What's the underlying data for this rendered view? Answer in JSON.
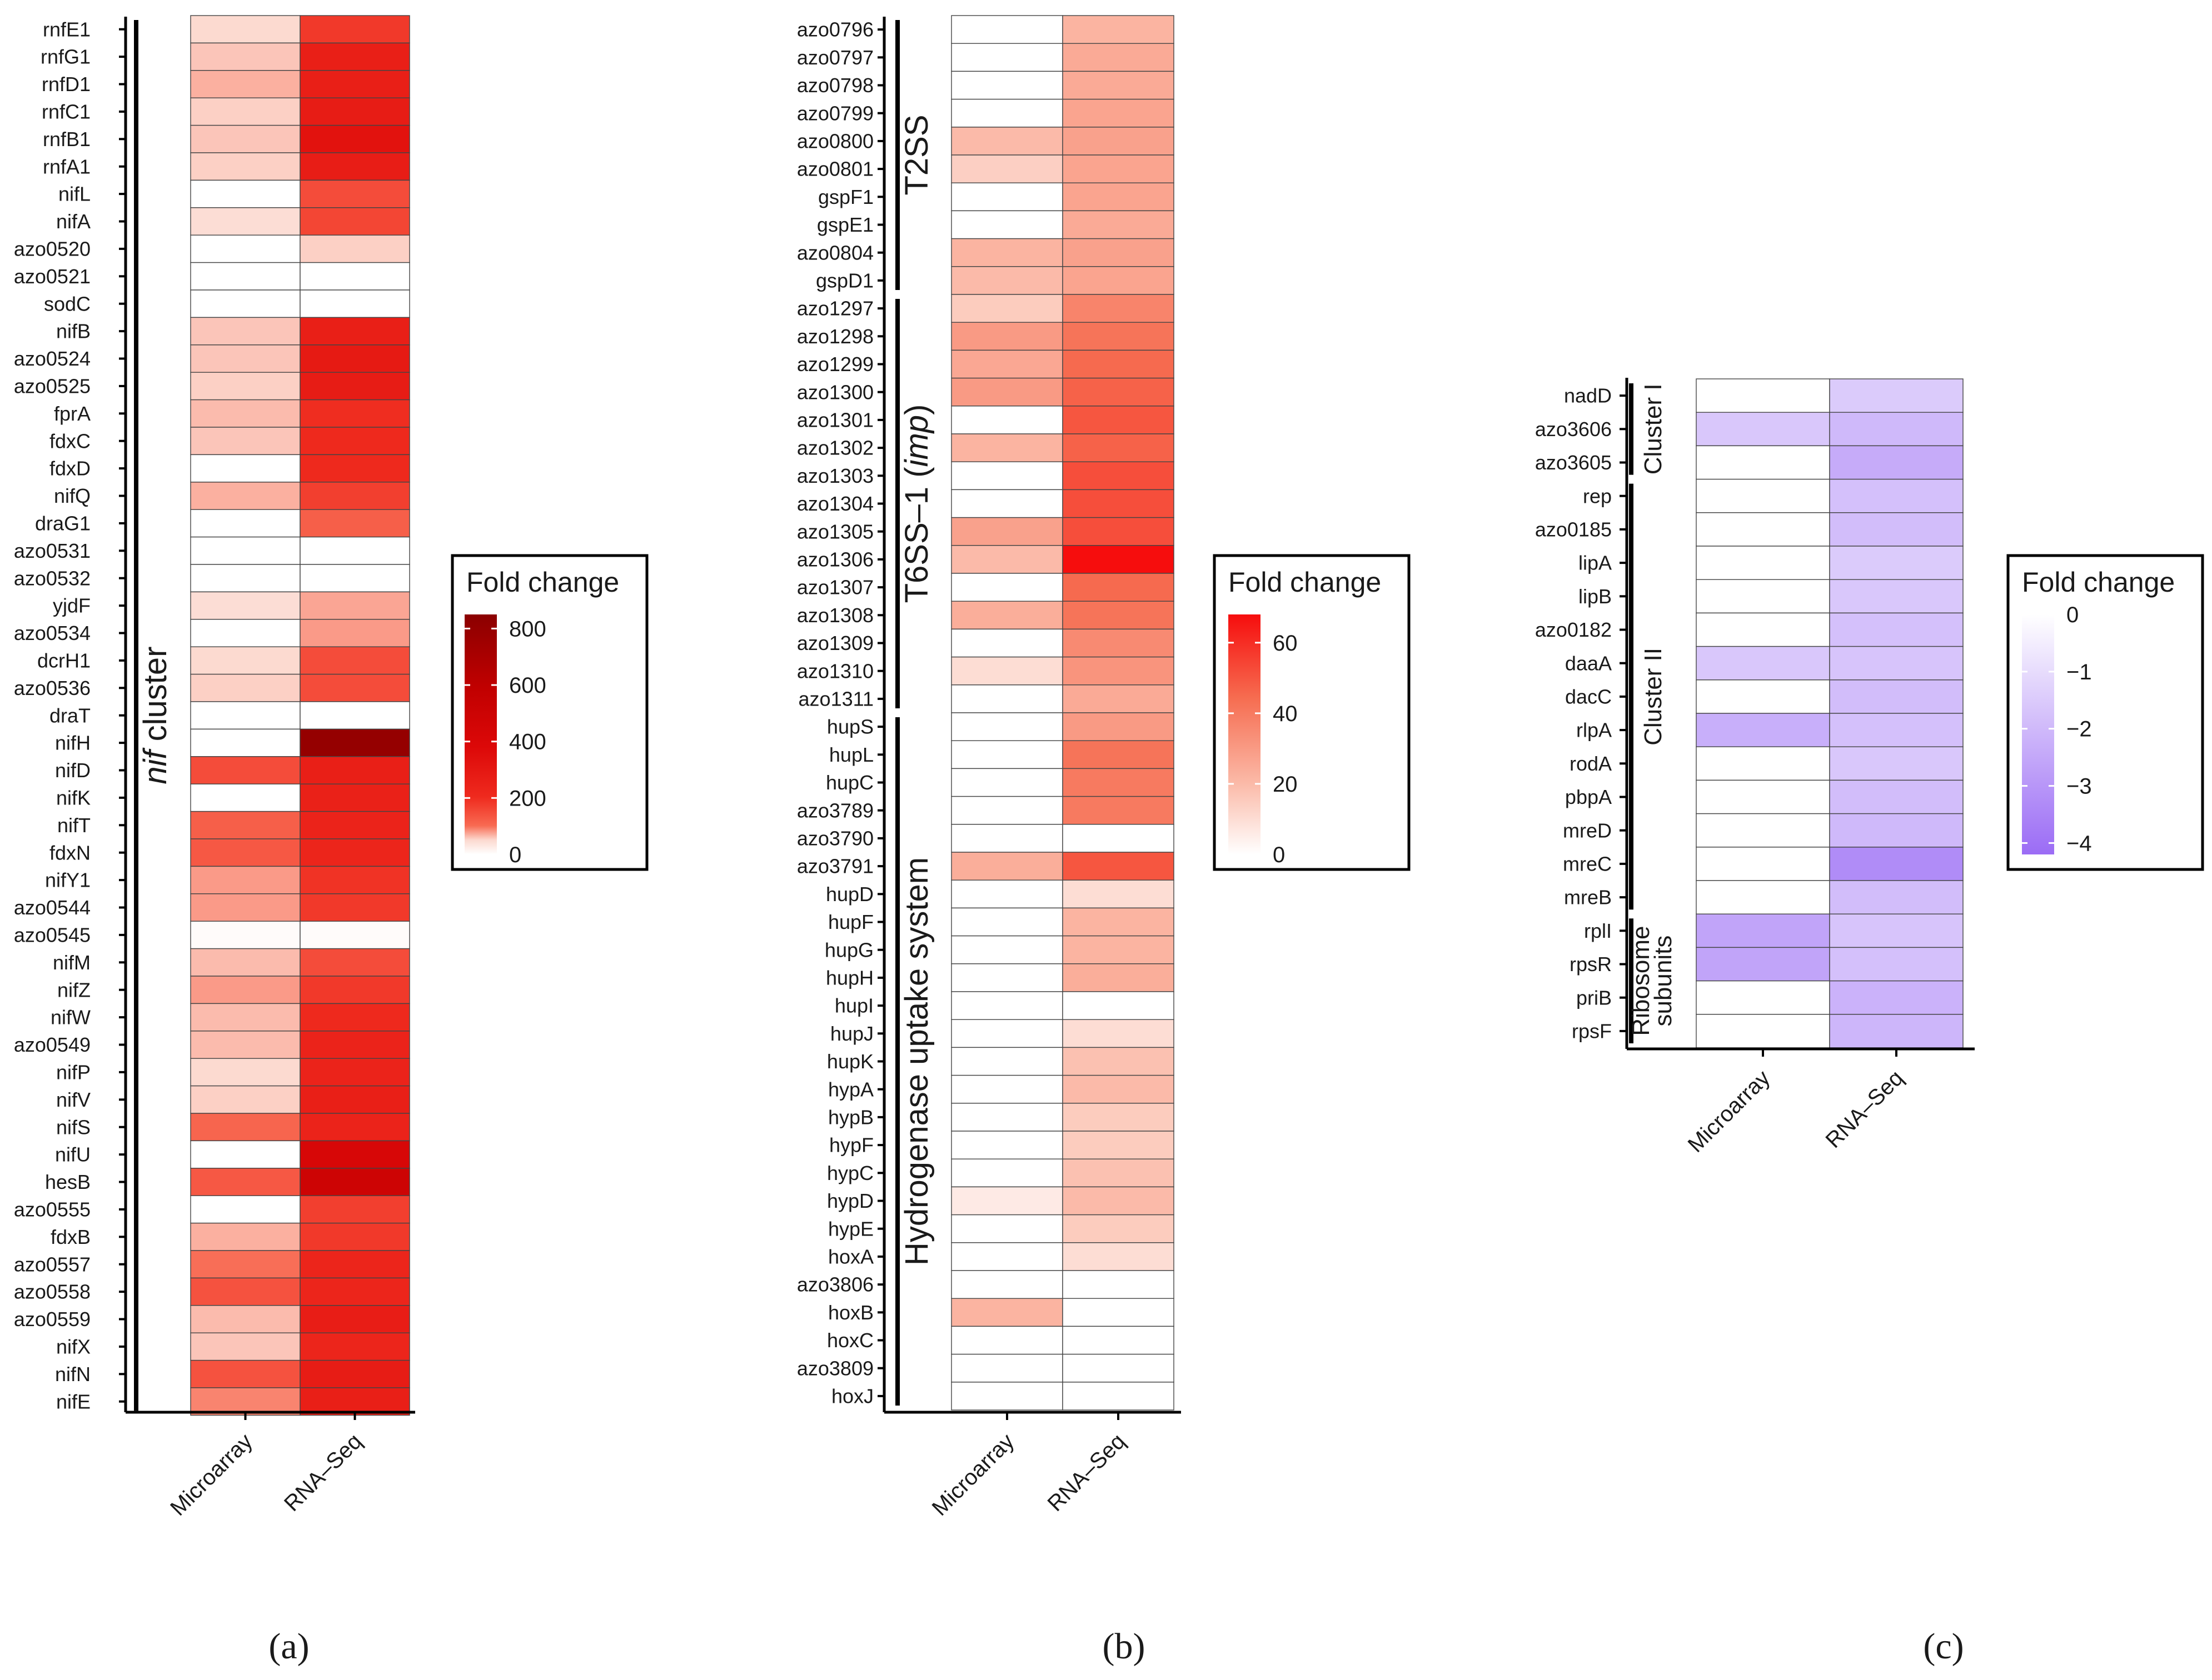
{
  "panels": [
    {
      "id": "a",
      "panel_label": "(a)",
      "legend_title": "Fold change",
      "scale": "red",
      "legend": {
        "min": 0,
        "max": 850,
        "ticks": [
          0,
          200,
          400,
          600,
          800
        ]
      },
      "columns": [
        "Microarray",
        "RNA–Seq"
      ],
      "brackets": [
        {
          "from": 0,
          "to": 50,
          "label": "nif cluster",
          "italic_prefix": "nif",
          "plain_suffix": " cluster"
        }
      ],
      "genes": [
        "rnfE1",
        "rnfG1",
        "rnfD1",
        "rnfC1",
        "rnfB1",
        "rnfA1",
        "nifL",
        "nifA",
        "azo0520",
        "azo0521",
        "sodC",
        "nifB",
        "azo0524",
        "azo0525",
        "fprA",
        "fdxC",
        "fdxD",
        "nifQ",
        "draG1",
        "azo0531",
        "azo0532",
        "yjdF",
        "azo0534",
        "dcrH1",
        "azo0536",
        "draT",
        "nifH",
        "nifD",
        "nifK",
        "nifT",
        "fdxN",
        "nifY1",
        "azo0544",
        "azo0545",
        "nifM",
        "nifZ",
        "nifW",
        "azo0549",
        "nifP",
        "nifV",
        "nifS",
        "nifU",
        "hesB",
        "azo0555",
        "fdxB",
        "azo0557",
        "azo0558",
        "azo0559",
        "nifX",
        "nifN",
        "nifE"
      ]
    },
    {
      "id": "b",
      "panel_label": "(b)",
      "legend_title": "Fold change",
      "scale": "red",
      "legend": {
        "min": 0,
        "max": 68,
        "ticks": [
          0,
          20,
          40,
          60
        ]
      },
      "columns": [
        "Microarray",
        "RNA–Seq"
      ],
      "brackets": [
        {
          "from": 0,
          "to": 9,
          "label": "T2SS",
          "italic_prefix": "",
          "plain_suffix": "T2SS"
        },
        {
          "from": 10,
          "to": 24,
          "label": "T6SS–1 (imp)",
          "italic_prefix": "",
          "plain_suffix": "T6SS–1 (",
          "italic_mid": "imp",
          "plain_end": ")"
        },
        {
          "from": 25,
          "to": 49,
          "label": "Hydrogenase uptake system",
          "italic_prefix": "",
          "plain_suffix": "Hydrogenase uptake system"
        }
      ],
      "genes": [
        "azo0796",
        "azo0797",
        "azo0798",
        "azo0799",
        "azo0800",
        "azo0801",
        "gspF1",
        "gspE1",
        "azo0804",
        "gspD1",
        "azo1297",
        "azo1298",
        "azo1299",
        "azo1300",
        "azo1301",
        "azo1302",
        "azo1303",
        "azo1304",
        "azo1305",
        "azo1306",
        "azo1307",
        "azo1308",
        "azo1309",
        "azo1310",
        "azo1311",
        "hupS",
        "hupL",
        "hupC",
        "azo3789",
        "azo3790",
        "azo3791",
        "hupD",
        "hupF",
        "hupG",
        "hupH",
        "hupI",
        "hupJ",
        "hupK",
        "hypA",
        "hypB",
        "hypF",
        "hypC",
        "hypD",
        "hypE",
        "hoxA",
        "azo3806",
        "hoxB",
        "hoxC",
        "azo3809",
        "hoxJ"
      ]
    },
    {
      "id": "c",
      "panel_label": "(c)",
      "legend_title": "Fold change",
      "scale": "purple",
      "legend": {
        "min": -4.2,
        "max": 0,
        "ticks": [
          0,
          -1,
          -2,
          -3,
          -4
        ]
      },
      "columns": [
        "Microarray",
        "RNA–Seq"
      ],
      "brackets": [
        {
          "from": 0,
          "to": 2,
          "label": "Cluster I"
        },
        {
          "from": 3,
          "to": 15,
          "label": "Cluster II"
        },
        {
          "from": 16,
          "to": 19,
          "label": "Ribosome subunits",
          "two_line": [
            "Ribosome",
            "subunits"
          ]
        }
      ],
      "genes": [
        "nadD",
        "azo3606",
        "azo3605",
        "rep",
        "azo0185",
        "lipA",
        "lipB",
        "azo0182",
        "daaA",
        "dacC",
        "rlpA",
        "rodA",
        "pbpA",
        "mreD",
        "mreC",
        "mreB",
        "rplI",
        "rpsR",
        "priB",
        "rpsF"
      ]
    }
  ],
  "chart_data": [
    {
      "type": "heatmap",
      "title": "(a)",
      "legend_title": "Fold change",
      "x": [
        "Microarray",
        "RNA–Seq"
      ],
      "y": [
        "rnfE1",
        "rnfG1",
        "rnfD1",
        "rnfC1",
        "rnfB1",
        "rnfA1",
        "nifL",
        "nifA",
        "azo0520",
        "azo0521",
        "sodC",
        "nifB",
        "azo0524",
        "azo0525",
        "fprA",
        "fdxC",
        "fdxD",
        "nifQ",
        "draG1",
        "azo0531",
        "azo0532",
        "yjdF",
        "azo0534",
        "dcrH1",
        "azo0536",
        "draT",
        "nifH",
        "nifD",
        "nifK",
        "nifT",
        "fdxN",
        "nifY1",
        "azo0544",
        "azo0545",
        "nifM",
        "nifZ",
        "nifW",
        "azo0549",
        "nifP",
        "nifV",
        "nifS",
        "nifU",
        "hesB",
        "azo0555",
        "fdxB",
        "azo0557",
        "azo0558",
        "azo0559",
        "nifX",
        "nifN",
        "nifE"
      ],
      "values": [
        [
          50,
          180
        ],
        [
          60,
          260
        ],
        [
          70,
          260
        ],
        [
          55,
          280
        ],
        [
          60,
          330
        ],
        [
          55,
          270
        ],
        [
          0,
          150
        ],
        [
          45,
          160
        ],
        [
          0,
          55
        ],
        [
          0,
          0
        ],
        [
          0,
          0
        ],
        [
          60,
          260
        ],
        [
          60,
          290
        ],
        [
          55,
          280
        ],
        [
          65,
          200
        ],
        [
          60,
          210
        ],
        [
          0,
          210
        ],
        [
          70,
          170
        ],
        [
          0,
          120
        ],
        [
          0,
          0
        ],
        [
          0,
          0
        ],
        [
          45,
          75
        ],
        [
          0,
          80
        ],
        [
          50,
          150
        ],
        [
          55,
          150
        ],
        [
          0,
          0
        ],
        [
          0,
          800
        ],
        [
          150,
          260
        ],
        [
          0,
          250
        ],
        [
          120,
          240
        ],
        [
          130,
          230
        ],
        [
          80,
          190
        ],
        [
          80,
          180
        ],
        [
          5,
          5
        ],
        [
          65,
          150
        ],
        [
          80,
          180
        ],
        [
          65,
          210
        ],
        [
          65,
          240
        ],
        [
          50,
          240
        ],
        [
          55,
          260
        ],
        [
          110,
          240
        ],
        [
          0,
          420
        ],
        [
          130,
          500
        ],
        [
          0,
          170
        ],
        [
          70,
          180
        ],
        [
          100,
          230
        ],
        [
          140,
          230
        ],
        [
          65,
          270
        ],
        [
          60,
          230
        ],
        [
          140,
          280
        ],
        [
          90,
          260
        ]
      ],
      "colorbar": {
        "min": 0,
        "max": 850,
        "ticks": [
          0,
          200,
          400,
          600,
          800
        ]
      },
      "groups": [
        {
          "label": "nif cluster",
          "genes": "rnfE1–nifE"
        }
      ]
    },
    {
      "type": "heatmap",
      "title": "(b)",
      "legend_title": "Fold change",
      "x": [
        "Microarray",
        "RNA–Seq"
      ],
      "y": [
        "azo0796",
        "azo0797",
        "azo0798",
        "azo0799",
        "azo0800",
        "azo0801",
        "gspF1",
        "gspE1",
        "azo0804",
        "gspD1",
        "azo1297",
        "azo1298",
        "azo1299",
        "azo1300",
        "azo1301",
        "azo1302",
        "azo1303",
        "azo1304",
        "azo1305",
        "azo1306",
        "azo1307",
        "azo1308",
        "azo1309",
        "azo1310",
        "azo1311",
        "hupS",
        "hupL",
        "hupC",
        "azo3789",
        "azo3790",
        "azo3791",
        "hupD",
        "hupF",
        "hupG",
        "hupH",
        "hupI",
        "hupJ",
        "hupK",
        "hypA",
        "hypB",
        "hypF",
        "hypC",
        "hypD",
        "hypE",
        "hoxA",
        "azo3806",
        "hoxB",
        "hoxC",
        "azo3809",
        "hoxJ"
      ],
      "values": [
        [
          0,
          22
        ],
        [
          0,
          25
        ],
        [
          0,
          25
        ],
        [
          0,
          27
        ],
        [
          20,
          28
        ],
        [
          14,
          27
        ],
        [
          0,
          27
        ],
        [
          0,
          25
        ],
        [
          22,
          28
        ],
        [
          20,
          27
        ],
        [
          15,
          37
        ],
        [
          30,
          42
        ],
        [
          26,
          45
        ],
        [
          30,
          47
        ],
        [
          0,
          50
        ],
        [
          22,
          47
        ],
        [
          0,
          52
        ],
        [
          0,
          52
        ],
        [
          28,
          52
        ],
        [
          20,
          68
        ],
        [
          0,
          45
        ],
        [
          24,
          42
        ],
        [
          0,
          35
        ],
        [
          10,
          32
        ],
        [
          0,
          25
        ],
        [
          0,
          30
        ],
        [
          0,
          42
        ],
        [
          0,
          40
        ],
        [
          0,
          40
        ],
        [
          0,
          0
        ],
        [
          24,
          50
        ],
        [
          0,
          10
        ],
        [
          0,
          22
        ],
        [
          0,
          22
        ],
        [
          0,
          24
        ],
        [
          0,
          0
        ],
        [
          0,
          10
        ],
        [
          0,
          18
        ],
        [
          0,
          20
        ],
        [
          0,
          15
        ],
        [
          0,
          15
        ],
        [
          0,
          18
        ],
        [
          6,
          20
        ],
        [
          0,
          15
        ],
        [
          0,
          10
        ],
        [
          0,
          0
        ],
        [
          22,
          0
        ],
        [
          0,
          0
        ],
        [
          0,
          0
        ],
        [
          0,
          0
        ]
      ],
      "colorbar": {
        "min": 0,
        "max": 68,
        "ticks": [
          0,
          20,
          40,
          60
        ]
      },
      "groups": [
        {
          "label": "T2SS",
          "genes": "azo0796–gspD1"
        },
        {
          "label": "T6SS–1 (imp)",
          "genes": "azo1297–azo1311"
        },
        {
          "label": "Hydrogenase uptake system",
          "genes": "hupS–hoxJ"
        }
      ]
    },
    {
      "type": "heatmap",
      "title": "(c)",
      "legend_title": "Fold change",
      "x": [
        "Microarray",
        "RNA–Seq"
      ],
      "y": [
        "nadD",
        "azo3606",
        "azo3605",
        "rep",
        "azo0185",
        "lipA",
        "lipB",
        "azo0182",
        "daaA",
        "dacC",
        "rlpA",
        "rodA",
        "pbpA",
        "mreD",
        "mreC",
        "mreB",
        "rplI",
        "rpsR",
        "priB",
        "rpsF"
      ],
      "values": [
        [
          0,
          -1.5
        ],
        [
          -1.6,
          -2.0
        ],
        [
          0,
          -2.4
        ],
        [
          0,
          -1.8
        ],
        [
          0,
          -1.9
        ],
        [
          0,
          -1.5
        ],
        [
          0,
          -1.6
        ],
        [
          0,
          -1.8
        ],
        [
          -1.6,
          -1.7
        ],
        [
          0,
          -1.9
        ],
        [
          -2.3,
          -1.8
        ],
        [
          0,
          -1.6
        ],
        [
          0,
          -1.9
        ],
        [
          0,
          -2.0
        ],
        [
          0,
          -3.3
        ],
        [
          0,
          -1.9
        ],
        [
          -2.6,
          -1.7
        ],
        [
          -2.6,
          -1.8
        ],
        [
          0,
          -2.2
        ],
        [
          0,
          -2.1
        ]
      ],
      "colorbar": {
        "min": -4.2,
        "max": 0,
        "ticks": [
          0,
          -1,
          -2,
          -3,
          -4
        ]
      },
      "groups": [
        {
          "label": "Cluster I",
          "genes": "nadD–azo3605"
        },
        {
          "label": "Cluster II",
          "genes": "rep–mreB"
        },
        {
          "label": "Ribosome subunits",
          "genes": "rplI–rpsF"
        }
      ]
    }
  ]
}
